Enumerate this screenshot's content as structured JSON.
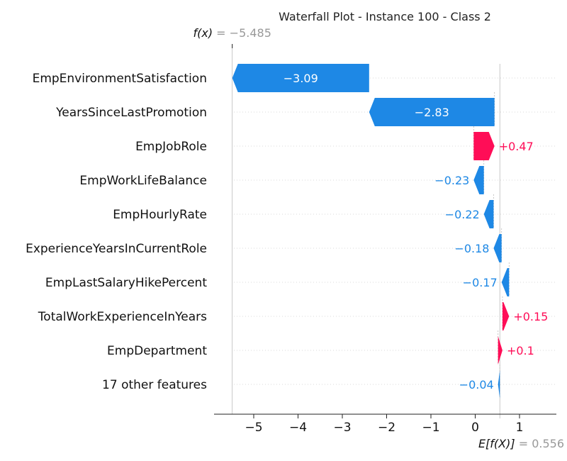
{
  "chart_data": {
    "type": "waterfall",
    "title": "Waterfall Plot - Instance 100 - Class 2",
    "fx": {
      "label": "f(x)",
      "value_text": "= −5.485",
      "value": -5.485
    },
    "base": {
      "label": "E[f(X)]",
      "value_text": "= 0.556",
      "value": 0.556
    },
    "xlim": [
      -5.9,
      1.8
    ],
    "xticks": [
      -5,
      -4,
      -3,
      -2,
      -1,
      0,
      1
    ],
    "xtick_labels": [
      "−5",
      "−4",
      "−3",
      "−2",
      "−1",
      "0",
      "1"
    ],
    "features": [
      {
        "name": "EmpEnvironmentSatisfaction",
        "value": -3.09,
        "label": "−3.09",
        "start": -2.395,
        "end": -5.485
      },
      {
        "name": "YearsSinceLastPromotion",
        "value": -2.83,
        "label": "−2.83",
        "start": 0.435,
        "end": -2.395
      },
      {
        "name": "EmpJobRole",
        "value": 0.47,
        "label": "+0.47",
        "start": -0.035,
        "end": 0.435
      },
      {
        "name": "EmpWorkLifeBalance",
        "value": -0.23,
        "label": "−0.23",
        "start": 0.195,
        "end": -0.035
      },
      {
        "name": "EmpHourlyRate",
        "value": -0.22,
        "label": "−0.22",
        "start": 0.415,
        "end": 0.195
      },
      {
        "name": "ExperienceYearsInCurrentRole",
        "value": -0.18,
        "label": "−0.18",
        "start": 0.595,
        "end": 0.415
      },
      {
        "name": "EmpLastSalaryHikePercent",
        "value": -0.17,
        "label": "−0.17",
        "start": 0.765,
        "end": 0.595
      },
      {
        "name": "TotalWorkExperienceInYears",
        "value": 0.15,
        "label": "+0.15",
        "start": 0.615,
        "end": 0.765
      },
      {
        "name": "EmpDepartment",
        "value": 0.1,
        "label": "+0.1",
        "start": 0.515,
        "end": 0.615
      },
      {
        "name": "17 other features",
        "value": -0.04,
        "label": "−0.04",
        "start": 0.556,
        "end": 0.515
      }
    ],
    "colors": {
      "positive": "#ff0d57",
      "negative": "#1e88e5",
      "gray": "#999999"
    }
  }
}
